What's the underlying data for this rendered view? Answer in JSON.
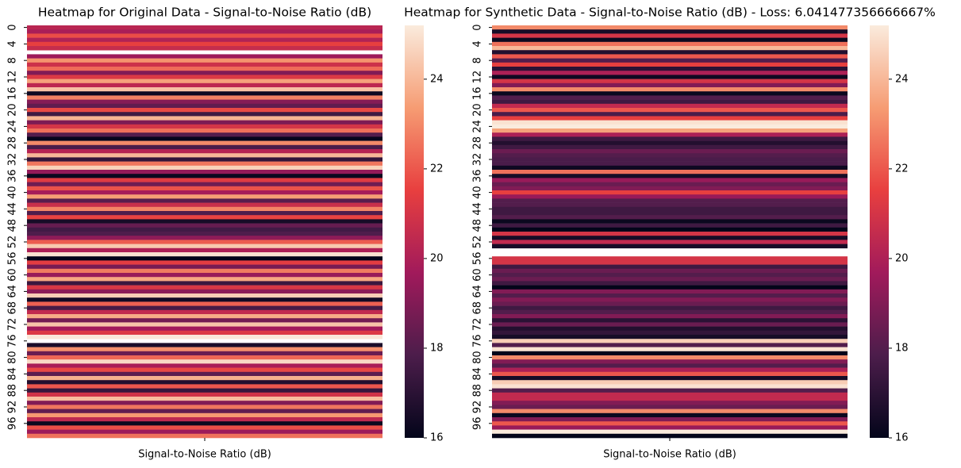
{
  "chart_data": [
    {
      "type": "heatmap",
      "title": "Heatmap for Original Data - Signal-to-Noise Ratio (dB)",
      "x_categories": [
        "Signal-to-Noise Ratio (dB)"
      ],
      "y_categories": [
        0,
        null,
        null,
        null,
        4,
        null,
        null,
        null,
        8,
        null,
        null,
        null,
        12,
        null,
        null,
        null,
        16,
        null,
        null,
        null,
        20,
        null,
        null,
        null,
        24,
        null,
        null,
        null,
        28,
        null,
        null,
        null,
        32,
        null,
        null,
        null,
        36,
        null,
        null,
        null,
        40,
        null,
        null,
        null,
        44,
        null,
        null,
        null,
        48,
        null,
        null,
        null,
        52,
        null,
        null,
        null,
        56,
        null,
        null,
        null,
        60,
        null,
        null,
        null,
        64,
        null,
        null,
        null,
        68,
        null,
        null,
        null,
        72,
        null,
        null,
        null,
        76,
        null,
        null,
        null,
        80,
        null,
        null,
        null,
        84,
        null,
        null,
        null,
        88,
        null,
        null,
        null,
        92,
        null,
        null,
        null,
        96,
        null,
        null,
        null
      ],
      "values": [
        20.3,
        19.9,
        21.8,
        20.1,
        21.5,
        20.6,
        null,
        19.6,
        23.2,
        20.8,
        22.4,
        19.0,
        21.2,
        23.5,
        20.4,
        24.2,
        16.3,
        22.8,
        19.1,
        18.3,
        21.7,
        17.5,
        23.9,
        18.9,
        21.0,
        22.5,
        18.0,
        16.1,
        23.0,
        17.8,
        20.2,
        24.0,
        17.2,
        22.6,
        24.6,
        19.4,
        16.2,
        21.3,
        18.6,
        21.9,
        19.8,
        23.4,
        18.1,
        20.7,
        22.9,
        17.9,
        21.6,
        16.5,
        18.4,
        17.6,
        17.9,
        19.3,
        22.1,
        24.4,
        20.0,
        25.0,
        16.0,
        21.4,
        18.8,
        22.7,
        19.5,
        23.6,
        17.4,
        21.1,
        19.2,
        24.5,
        16.4,
        22.2,
        17.7,
        20.5,
        23.7,
        18.7,
        24.3,
        19.7,
        21.2,
        25.1,
        null,
        16.6,
        23.1,
        18.5,
        22.3,
        24.8,
        19.9,
        21.7,
        18.2,
        23.8,
        16.8,
        22.0,
        17.3,
        20.9,
        24.1,
        19.0,
        22.6,
        18.3,
        23.3,
        20.4,
        16.2,
        21.8,
        19.6,
        22.5
      ],
      "clim": [
        16,
        25.2
      ],
      "cticks": [
        16,
        18,
        20,
        22,
        24
      ],
      "colormap": [
        "#03051a",
        "#4c1d4b",
        "#a11a5b",
        "#e83f3f",
        "#f69c73",
        "#faebdd"
      ]
    },
    {
      "type": "heatmap",
      "title": "Heatmap for Synthetic Data - Signal-to-Noise Ratio (dB) - Loss: 6.041477356666667%",
      "x_categories": [
        "Signal-to-Noise Ratio (dB)"
      ],
      "y_categories": [
        0,
        null,
        null,
        null,
        4,
        null,
        null,
        null,
        8,
        null,
        null,
        null,
        12,
        null,
        null,
        null,
        16,
        null,
        null,
        null,
        20,
        null,
        null,
        null,
        24,
        null,
        null,
        null,
        28,
        null,
        null,
        null,
        32,
        null,
        null,
        null,
        36,
        null,
        null,
        null,
        40,
        null,
        null,
        null,
        44,
        null,
        null,
        null,
        48,
        null,
        null,
        null,
        52,
        null,
        null,
        null,
        56,
        null,
        null,
        null,
        60,
        null,
        null,
        null,
        64,
        null,
        null,
        null,
        68,
        null,
        null,
        null,
        72,
        null,
        null,
        null,
        76,
        null,
        null,
        null,
        80,
        null,
        null,
        null,
        84,
        null,
        null,
        null,
        88,
        null,
        null,
        null,
        92,
        null,
        null,
        null,
        96,
        null,
        null,
        null
      ],
      "values": [
        23.0,
        16.5,
        21.0,
        16.2,
        22.5,
        24.0,
        16.8,
        22.0,
        18.0,
        21.5,
        17.0,
        20.0,
        16.3,
        21.0,
        19.0,
        23.0,
        16.2,
        18.0,
        17.5,
        20.5,
        22.0,
        17.8,
        21.5,
        25.0,
        25.2,
        23.5,
        20.0,
        17.5,
        16.8,
        17.5,
        18.5,
        18.0,
        17.8,
        17.8,
        16.3,
        22.5,
        16.5,
        19.5,
        18.5,
        19.0,
        21.5,
        19.5,
        18.0,
        18.0,
        17.5,
        17.5,
        18.0,
        16.2,
        17.5,
        16.0,
        21.0,
        16.5,
        20.5,
        16.5,
        null,
        null,
        21.0,
        21.0,
        17.5,
        18.5,
        18.0,
        18.5,
        17.5,
        16.0,
        19.0,
        18.0,
        19.0,
        18.5,
        17.5,
        18.0,
        19.0,
        17.0,
        18.5,
        16.8,
        17.2,
        16.5,
        24.5,
        18.0,
        25.0,
        16.0,
        23.0,
        19.0,
        18.0,
        20.0,
        22.0,
        16.5,
        24.5,
        25.0,
        18.0,
        20.5,
        20.5,
        19.0,
        18.5,
        23.0,
        16.2,
        19.0,
        22.0,
        19.5,
        25.2,
        16.0
      ],
      "clim": [
        16,
        25.2
      ],
      "cticks": [
        16,
        18,
        20,
        22,
        24
      ],
      "colormap": [
        "#03051a",
        "#4c1d4b",
        "#a11a5b",
        "#e83f3f",
        "#f69c73",
        "#faebdd"
      ]
    }
  ]
}
